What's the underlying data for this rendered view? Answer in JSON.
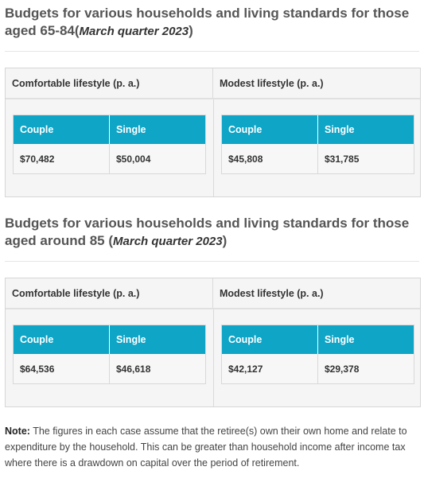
{
  "sections": [
    {
      "title_text": "Budgets for various households and living standards for those aged 65-84(",
      "title_emph": "March quarter 2023",
      "title_close": ")",
      "comfortable": {
        "label": "Comfortable lifestyle (p. a.)",
        "couple_label": "Couple",
        "single_label": "Single",
        "couple_value": "$70,482",
        "single_value": "$50,004"
      },
      "modest": {
        "label": "Modest lifestyle (p. a.)",
        "couple_label": "Couple",
        "single_label": "Single",
        "couple_value": "$45,808",
        "single_value": "$31,785"
      }
    },
    {
      "title_text": "Budgets for various households and living standards for those aged around 85 (",
      "title_emph": "March quarter 2023",
      "title_close": ")",
      "comfortable": {
        "label": "Comfortable lifestyle (p. a.)",
        "couple_label": "Couple",
        "single_label": "Single",
        "couple_value": "$64,536",
        "single_value": "$46,618"
      },
      "modest": {
        "label": "Modest lifestyle (p. a.)",
        "couple_label": "Couple",
        "single_label": "Single",
        "couple_value": "$42,127",
        "single_value": "$29,378"
      }
    }
  ],
  "note": {
    "label": "Note:",
    "text": " The figures in each case assume that the retiree(s) own their own home and relate to expenditure by the household. This can be greater than household income after income tax where there is a drawdown on capital over the period of retirement."
  },
  "colors": {
    "accent": "#0ea5c6",
    "table_bg": "#f5f5f5"
  }
}
